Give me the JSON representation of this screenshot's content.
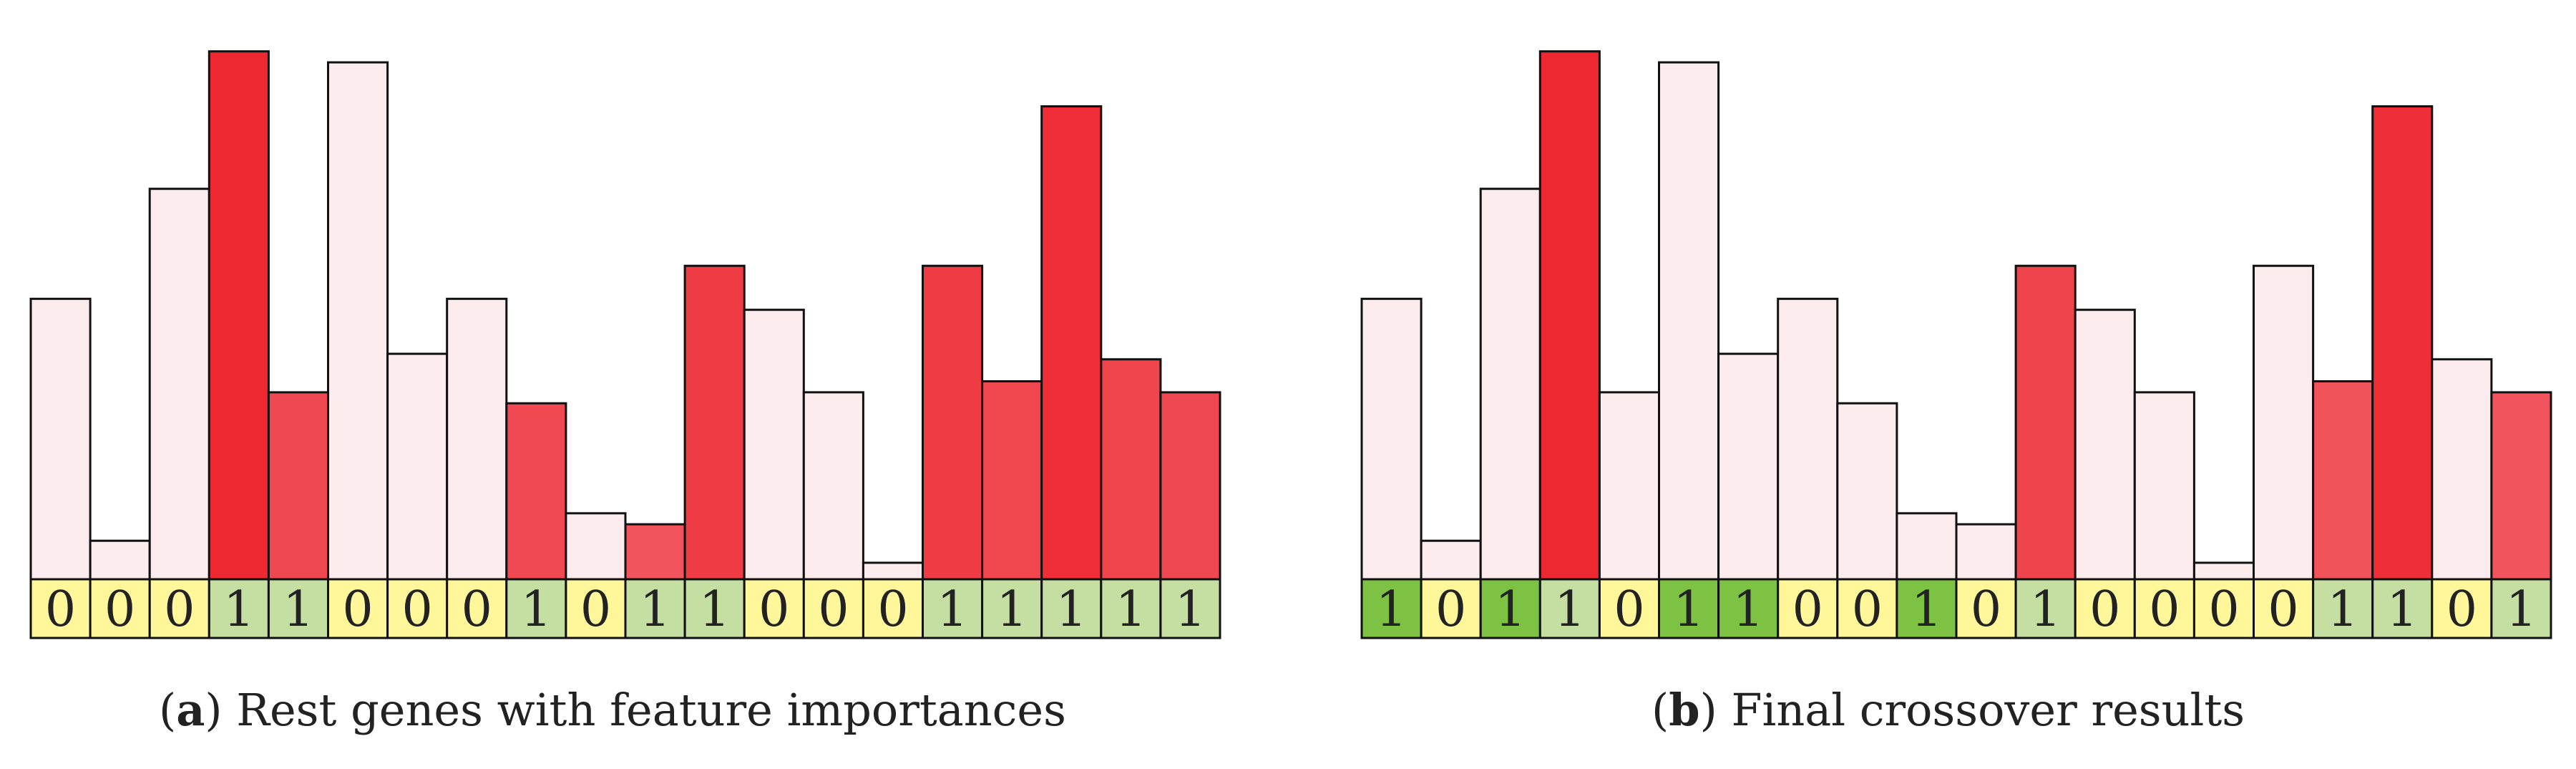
{
  "colors": {
    "gene_one": "#c5dfa2",
    "gene_zero": "#fff799",
    "gene_crossover": "#7dc242",
    "bar_low": "#fdecee",
    "bar_high": "#ee2831",
    "stroke": "#111111"
  },
  "chart_data": [
    {
      "type": "bar",
      "panel_label": "a",
      "caption": "Rest genes with feature importances",
      "ylim": [
        0,
        100
      ],
      "genes": [
        0,
        0,
        0,
        1,
        1,
        0,
        0,
        0,
        1,
        0,
        1,
        1,
        0,
        0,
        0,
        1,
        1,
        1,
        1,
        1
      ],
      "gene_labels": [
        "0",
        "0",
        "0",
        "1",
        "1",
        "0",
        "0",
        "0",
        "1",
        "0",
        "1",
        "1",
        "0",
        "0",
        "0",
        "1",
        "1",
        "1",
        "1",
        "1"
      ],
      "values": [
        51,
        7,
        71,
        96,
        34,
        94,
        41,
        51,
        32,
        12,
        10,
        57,
        49,
        34,
        3,
        57,
        36,
        86,
        40,
        34
      ],
      "highlight": [
        0,
        0,
        0,
        1,
        1,
        0,
        0,
        0,
        1,
        0,
        1,
        1,
        0,
        0,
        0,
        1,
        1,
        1,
        1,
        1
      ],
      "crossover": [
        0,
        0,
        0,
        0,
        0,
        0,
        0,
        0,
        0,
        0,
        0,
        0,
        0,
        0,
        0,
        0,
        0,
        0,
        0,
        0
      ]
    },
    {
      "type": "bar",
      "panel_label": "b",
      "caption": "Final crossover results",
      "ylim": [
        0,
        100
      ],
      "genes": [
        1,
        0,
        1,
        1,
        0,
        1,
        1,
        0,
        0,
        1,
        0,
        1,
        0,
        0,
        0,
        0,
        1,
        1,
        0,
        1
      ],
      "gene_labels": [
        "1",
        "0",
        "1",
        "1",
        "0",
        "1",
        "1",
        "0",
        "0",
        "1",
        "0",
        "1",
        "0",
        "0",
        "0",
        "0",
        "1",
        "1",
        "0",
        "1"
      ],
      "values": [
        51,
        7,
        71,
        96,
        34,
        94,
        41,
        51,
        32,
        12,
        10,
        57,
        49,
        34,
        3,
        57,
        36,
        86,
        40,
        34
      ],
      "highlight": [
        0,
        0,
        0,
        1,
        0,
        0,
        0,
        0,
        0,
        0,
        0,
        1,
        0,
        0,
        0,
        0,
        1,
        1,
        0,
        1
      ],
      "crossover": [
        1,
        0,
        1,
        0,
        0,
        1,
        1,
        0,
        0,
        1,
        0,
        0,
        0,
        0,
        0,
        0,
        0,
        0,
        0,
        0
      ]
    }
  ]
}
